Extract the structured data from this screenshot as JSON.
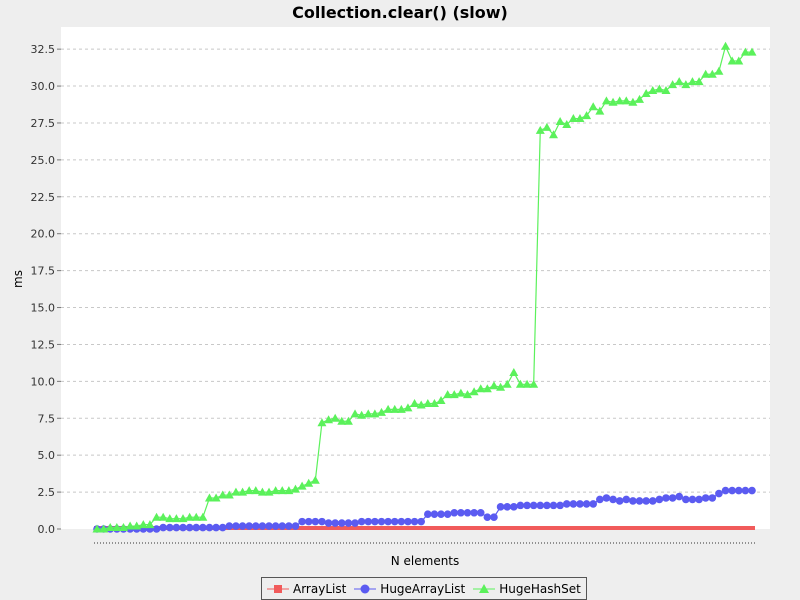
{
  "chart_data": {
    "type": "line",
    "title": "Collection.clear() (slow)",
    "xlabel": "N elements",
    "ylabel": "ms",
    "ylim": [
      0,
      34
    ],
    "yticks": [
      "0.0",
      "2.5",
      "5.0",
      "7.5",
      "10.0",
      "12.5",
      "15.0",
      "17.5",
      "20.0",
      "22.5",
      "25.0",
      "27.5",
      "30.0",
      "32.5"
    ],
    "grid": true,
    "legend_position": "bottom",
    "series": [
      {
        "name": "ArrayList",
        "color": "#f15b5b",
        "marker": "square",
        "values": [
          0.0,
          0.0,
          0.0,
          0.0,
          0.0,
          0.0,
          0.0,
          0.0,
          0.0,
          0.0,
          0.0,
          0.0,
          0.0,
          0.0,
          0.0,
          0.0,
          0.0,
          0.0,
          0.0,
          0.0,
          0.0,
          0.0,
          0.0,
          0.0,
          0.0,
          0.0,
          0.0,
          0.0,
          0.0,
          0.0,
          0.0,
          0.0,
          0.0,
          0.0,
          0.0,
          0.0,
          0.0,
          0.0,
          0.0,
          0.0,
          0.0,
          0.0,
          0.0,
          0.0,
          0.0,
          0.0,
          0.0,
          0.0,
          0.0,
          0.0,
          0.0,
          0.0,
          0.0,
          0.0,
          0.0,
          0.0,
          0.0,
          0.0,
          0.0,
          0.0,
          0.0,
          0.0,
          0.0,
          0.0,
          0.0,
          0.0,
          0.0,
          0.0,
          0.0,
          0.0,
          0.0,
          0.0,
          0.0,
          0.0,
          0.0,
          0.0,
          0.0,
          0.0,
          0.0,
          0.0,
          0.0,
          0.0,
          0.0,
          0.0,
          0.0,
          0.0,
          0.0,
          0.0,
          0.0,
          0.0,
          0.0,
          0.0,
          0.0,
          0.0,
          0.0,
          0.0,
          0.0,
          0.0,
          0.0,
          0.0
        ]
      },
      {
        "name": "HugeArrayList",
        "color": "#5b5bf1",
        "marker": "circle",
        "values": [
          0.0,
          0.0,
          0.0,
          0.0,
          0.0,
          0.0,
          0.0,
          0.0,
          0.0,
          0.0,
          0.1,
          0.1,
          0.1,
          0.1,
          0.1,
          0.1,
          0.1,
          0.1,
          0.1,
          0.1,
          0.2,
          0.2,
          0.2,
          0.2,
          0.2,
          0.2,
          0.2,
          0.2,
          0.2,
          0.2,
          0.2,
          0.5,
          0.5,
          0.5,
          0.5,
          0.4,
          0.4,
          0.4,
          0.4,
          0.4,
          0.5,
          0.5,
          0.5,
          0.5,
          0.5,
          0.5,
          0.5,
          0.5,
          0.5,
          0.5,
          1.0,
          1.0,
          1.0,
          1.0,
          1.1,
          1.1,
          1.1,
          1.1,
          1.1,
          0.8,
          0.8,
          1.5,
          1.5,
          1.5,
          1.6,
          1.6,
          1.6,
          1.6,
          1.6,
          1.6,
          1.6,
          1.7,
          1.7,
          1.7,
          1.7,
          1.7,
          2.0,
          2.1,
          2.0,
          1.9,
          2.0,
          1.9,
          1.9,
          1.9,
          1.9,
          2.0,
          2.1,
          2.1,
          2.2,
          2.0,
          2.0,
          2.0,
          2.1,
          2.1,
          2.4,
          2.6,
          2.6,
          2.6,
          2.6,
          2.6
        ]
      },
      {
        "name": "HugeHashSet",
        "color": "#5bf15b",
        "marker": "triangle",
        "values": [
          0.0,
          0.0,
          0.1,
          0.1,
          0.1,
          0.2,
          0.2,
          0.3,
          0.3,
          0.8,
          0.8,
          0.7,
          0.7,
          0.7,
          0.8,
          0.8,
          0.8,
          2.1,
          2.1,
          2.3,
          2.3,
          2.5,
          2.5,
          2.6,
          2.6,
          2.5,
          2.5,
          2.6,
          2.6,
          2.6,
          2.7,
          2.9,
          3.1,
          3.3,
          7.2,
          7.4,
          7.5,
          7.3,
          7.3,
          7.8,
          7.7,
          7.8,
          7.8,
          7.9,
          8.1,
          8.1,
          8.1,
          8.2,
          8.5,
          8.4,
          8.5,
          8.5,
          8.7,
          9.1,
          9.1,
          9.2,
          9.1,
          9.3,
          9.5,
          9.5,
          9.7,
          9.6,
          9.8,
          10.6,
          9.8,
          9.8,
          9.8,
          27.0,
          27.2,
          26.7,
          27.6,
          27.4,
          27.8,
          27.8,
          28.0,
          28.6,
          28.3,
          29.0,
          28.9,
          29.0,
          29.0,
          28.9,
          29.1,
          29.5,
          29.7,
          29.8,
          29.7,
          30.1,
          30.3,
          30.1,
          30.3,
          30.3,
          30.8,
          30.8,
          31.0,
          32.7,
          31.7,
          31.7,
          32.3,
          32.3
        ]
      }
    ]
  }
}
